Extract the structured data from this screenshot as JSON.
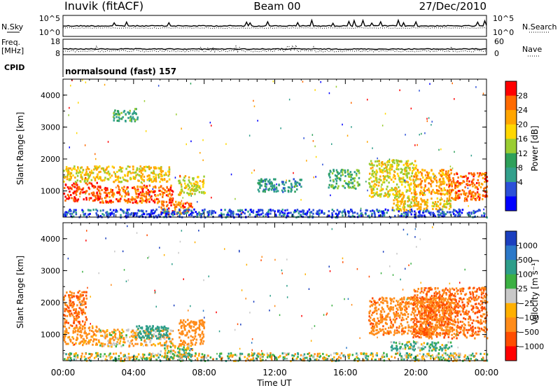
{
  "header": {
    "station": "Inuvik (fitACF)",
    "beam": "Beam 00",
    "date": "27/Dec/2010"
  },
  "panels": {
    "nsky": {
      "label": "N.Sky",
      "ticks": [
        "10^5",
        "10^0"
      ]
    },
    "nsearch": {
      "label": "N.Search",
      "ticks": [
        "10^5",
        "10^0"
      ]
    },
    "freq": {
      "label": "Freq.",
      "unit": "[MHz]",
      "ticks": [
        "18",
        "8"
      ]
    },
    "nave": {
      "label": "Nave",
      "ticks": [
        "60",
        "0"
      ]
    },
    "cpid": {
      "label": "CPID",
      "program": "normalsound (fast) 157"
    }
  },
  "power_panel": {
    "ylabel": "Slant Range [km]",
    "yticks": [
      "4000",
      "3000",
      "2000",
      "1000"
    ],
    "colorbar_label": "Power [dB]",
    "colorbar_ticks": [
      "28",
      "24",
      "20",
      "16",
      "12",
      "8",
      "4"
    ],
    "colors": [
      "#0000ff",
      "#2c50d8",
      "#33a08c",
      "#2ea05a",
      "#9acd32",
      "#ffd700",
      "#ffa500",
      "#ff6a00",
      "#ff0000"
    ]
  },
  "velocity_panel": {
    "ylabel": "Slant Range [km]",
    "yticks": [
      "4000",
      "3000",
      "2000",
      "1000"
    ],
    "colorbar_label": "Velocity [m s⁻¹]",
    "colorbar_ticks": [
      "1000",
      "500",
      "100",
      "25",
      "−25",
      "−100",
      "−500",
      "−1000"
    ],
    "colors": [
      "#1b3fbf",
      "#2b78c8",
      "#2e9e8a",
      "#3cb043",
      "#c8c8c8",
      "#ffb000",
      "#ff8c1a",
      "#ff4d00",
      "#ff0000"
    ]
  },
  "xaxis": {
    "label": "Time UT",
    "ticks": [
      "00:00",
      "04:00",
      "08:00",
      "12:00",
      "16:00",
      "20:00",
      "00:00"
    ]
  },
  "chart_data": {
    "type": "heatmap",
    "x_range_hours": [
      0,
      24
    ],
    "y_range_km": [
      180,
      4500
    ],
    "power_regions": [
      {
        "t0": 0.0,
        "t1": 2.0,
        "r0": 700,
        "r1": 1300,
        "power_db": 28
      },
      {
        "t0": 2.0,
        "t1": 6.2,
        "r0": 650,
        "r1": 1200,
        "power_db": 26
      },
      {
        "t0": 0.0,
        "t1": 6.0,
        "r0": 1300,
        "r1": 1800,
        "power_db": 20
      },
      {
        "t0": 5.5,
        "t1": 7.3,
        "r0": 300,
        "r1": 700,
        "power_db": 26
      },
      {
        "t0": 6.5,
        "t1": 8.0,
        "r0": 900,
        "r1": 1500,
        "power_db": 18
      },
      {
        "t0": 2.8,
        "t1": 4.2,
        "r0": 3200,
        "r1": 3600,
        "power_db": 12
      },
      {
        "t0": 11.0,
        "t1": 13.5,
        "r0": 1000,
        "r1": 1400,
        "power_db": 10
      },
      {
        "t0": 15.0,
        "t1": 16.8,
        "r0": 1100,
        "r1": 1700,
        "power_db": 12
      },
      {
        "t0": 17.3,
        "t1": 20.0,
        "r0": 800,
        "r1": 2000,
        "power_db": 18
      },
      {
        "t0": 19.8,
        "t1": 22.0,
        "r0": 900,
        "r1": 1700,
        "power_db": 22
      },
      {
        "t0": 21.8,
        "t1": 24.0,
        "r0": 700,
        "r1": 1600,
        "power_db": 26
      },
      {
        "t0": 18.5,
        "t1": 22.0,
        "r0": 400,
        "r1": 800,
        "power_db": 20
      },
      {
        "t0": 0.0,
        "t1": 24.0,
        "r0": 200,
        "r1": 450,
        "power_db": 6
      }
    ],
    "velocity_regions": [
      {
        "t0": 0.0,
        "t1": 2.0,
        "r0": 700,
        "r1": 1300,
        "velocity": -200
      },
      {
        "t0": 2.0,
        "t1": 6.2,
        "r0": 650,
        "r1": 1200,
        "velocity": -100
      },
      {
        "t0": 0.0,
        "t1": 1.3,
        "r0": 1300,
        "r1": 2400,
        "velocity": -500
      },
      {
        "t0": 4.0,
        "t1": 6.0,
        "r0": 900,
        "r1": 1300,
        "velocity": 300
      },
      {
        "t0": 5.5,
        "t1": 7.3,
        "r0": 300,
        "r1": 700,
        "velocity": 0
      },
      {
        "t0": 6.5,
        "t1": 8.0,
        "r0": 700,
        "r1": 1500,
        "velocity": -300
      },
      {
        "t0": 17.3,
        "t1": 22.0,
        "r0": 1000,
        "r1": 2200,
        "velocity": -400
      },
      {
        "t0": 19.8,
        "t1": 24.0,
        "r0": 900,
        "r1": 2500,
        "velocity": -500
      },
      {
        "t0": 18.5,
        "t1": 22.0,
        "r0": 500,
        "r1": 800,
        "velocity": 100
      },
      {
        "t0": 0.0,
        "t1": 24.0,
        "r0": 200,
        "r1": 450,
        "velocity": 0
      }
    ]
  }
}
